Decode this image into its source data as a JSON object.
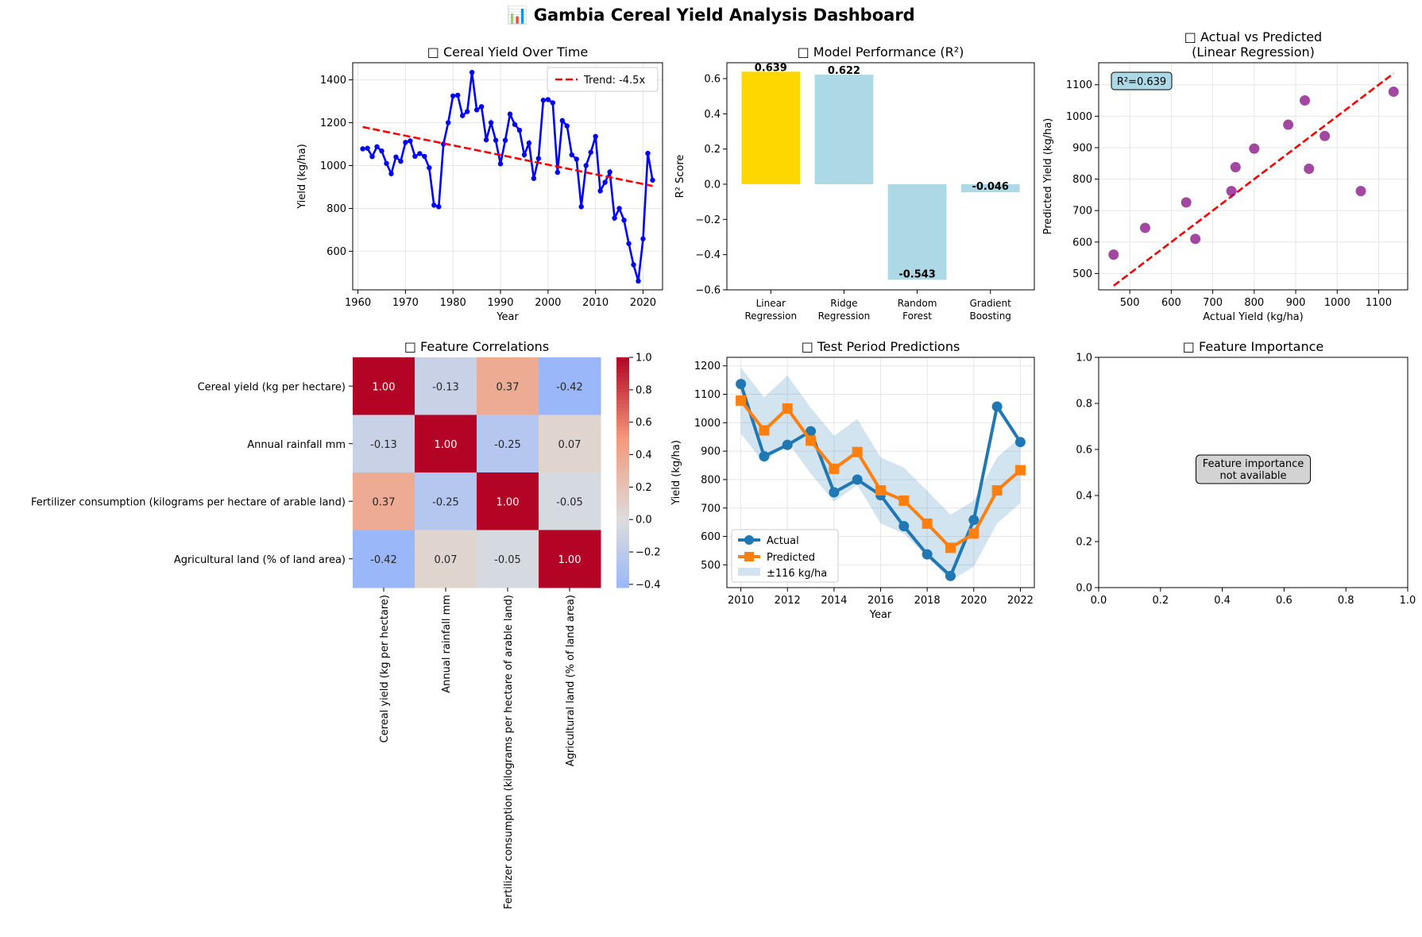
{
  "suptitle": "📊 Gambia Cereal Yield Analysis Dashboard",
  "missing_glyph": "□",
  "colors": {
    "line_blue": "#0000ff",
    "trend_red": "#ff0000",
    "gold": "#ffd700",
    "light_blue": "#add8e6",
    "purple": "#800080",
    "tab_blue": "#1f77b4",
    "tab_orange": "#ff7f0e",
    "band": "#1f77b4",
    "grid": "#e6e6e6"
  },
  "chart_data": [
    {
      "id": "yield_over_time",
      "type": "line",
      "title": "Cereal Yield Over Time",
      "xlabel": "Year",
      "ylabel": "Yield (kg/ha)",
      "xlim": [
        1958.9,
        2024.1
      ],
      "ylim": [
        420,
        1480
      ],
      "xticks": [
        1960,
        1970,
        1980,
        1990,
        2000,
        2010,
        2020
      ],
      "yticks": [
        600,
        800,
        1000,
        1200,
        1400
      ],
      "grid": true,
      "legend": {
        "position": "top-right",
        "entries": [
          "Trend: -4.5x"
        ]
      },
      "series": [
        {
          "x": [
            1961,
            1962,
            1963,
            1964,
            1965,
            1966,
            1967,
            1968,
            1969,
            1970,
            1971,
            1972,
            1973,
            1974,
            1975,
            1976,
            1977,
            1978,
            1979,
            1980,
            1981,
            1982,
            1983,
            1984,
            1985,
            1986,
            1987,
            1988,
            1989,
            1990,
            1991,
            1992,
            1993,
            1994,
            1995,
            1996,
            1997,
            1998,
            1999,
            2000,
            2001,
            2002,
            2003,
            2004,
            2005,
            2006,
            2007,
            2008,
            2009,
            2010,
            2011,
            2012,
            2013,
            2014,
            2015,
            2016,
            2017,
            2018,
            2019,
            2020,
            2021,
            2022
          ],
          "y": [
            1078,
            1081,
            1042,
            1088,
            1068,
            1010,
            962,
            1040,
            1020,
            1108,
            1115,
            1043,
            1056,
            1043,
            990,
            815,
            808,
            1100,
            1200,
            1325,
            1328,
            1233,
            1252,
            1435,
            1260,
            1275,
            1120,
            1200,
            1118,
            1008,
            1118,
            1240,
            1192,
            1165,
            1050,
            1105,
            940,
            1033,
            1305,
            1308,
            1293,
            968,
            1210,
            1185,
            1050,
            1030,
            808,
            1000,
            1062,
            1136,
            882,
            922,
            970,
            755,
            800,
            745,
            636,
            537,
            461,
            658,
            1057,
            932
          ]
        },
        {
          "name": "Trend: -4.5x",
          "x": [
            1961,
            2022
          ],
          "y": [
            1180,
            905
          ]
        }
      ]
    },
    {
      "id": "model_performance",
      "type": "bar",
      "title": "Model Performance (R²)",
      "ylabel": "R² Score",
      "ylim": [
        -0.6,
        0.69
      ],
      "yticks": [
        -0.6,
        -0.4,
        -0.2,
        0.0,
        0.2,
        0.4,
        0.6
      ],
      "categories": [
        "Linear\nRegression",
        "Ridge\nRegression",
        "Random\nForest",
        "Gradient\nBoosting"
      ],
      "values": [
        0.639,
        0.622,
        -0.543,
        -0.046
      ],
      "value_labels": [
        "0.639",
        "0.622",
        "-0.543",
        "-0.046"
      ],
      "highlight_index": 0
    },
    {
      "id": "actual_vs_predicted",
      "type": "scatter",
      "title": "Actual vs Predicted\n(Linear Regression)",
      "xlabel": "Actual Yield (kg/ha)",
      "ylabel": "Predicted Yield (kg/ha)",
      "xlim": [
        425,
        1170
      ],
      "ylim": [
        448,
        1170
      ],
      "xticks": [
        500,
        600,
        700,
        800,
        900,
        1000,
        1100
      ],
      "yticks": [
        500,
        600,
        700,
        800,
        900,
        1000,
        1100
      ],
      "annotation": "R²=0.639",
      "grid": true,
      "points": [
        [
          461,
          560
        ],
        [
          537,
          645
        ],
        [
          636,
          726
        ],
        [
          658,
          610
        ],
        [
          745,
          762
        ],
        [
          755,
          838
        ],
        [
          800,
          897
        ],
        [
          882,
          973
        ],
        [
          922,
          1050
        ],
        [
          932,
          833
        ],
        [
          970,
          937
        ],
        [
          1057,
          762
        ],
        [
          1136,
          1078
        ]
      ],
      "reference_line": [
        [
          461,
          461
        ],
        [
          1136,
          1136
        ]
      ]
    },
    {
      "id": "feature_correlations",
      "type": "heatmap",
      "title": "Feature Correlations",
      "labels": [
        "Cereal yield (kg per hectare)",
        "Annual rainfall mm",
        "Fertilizer consumption (kilograms per hectare of arable land)",
        "Agricultural land (% of land area)"
      ],
      "matrix": [
        [
          1.0,
          -0.13,
          0.37,
          -0.42
        ],
        [
          -0.13,
          1.0,
          -0.25,
          0.07
        ],
        [
          0.37,
          -0.25,
          1.0,
          -0.05
        ],
        [
          -0.42,
          0.07,
          -0.05,
          1.0
        ]
      ],
      "colorbar": {
        "range": [
          -0.42,
          1.0
        ],
        "ticks": [
          -0.4,
          -0.2,
          0.0,
          0.2,
          0.4,
          0.6,
          0.8,
          1.0
        ]
      }
    },
    {
      "id": "test_predictions",
      "type": "line",
      "title": "Test Period Predictions",
      "xlabel": "Year",
      "ylabel": "Yield (kg/ha)",
      "xlim": [
        2009.4,
        2022.6
      ],
      "ylim": [
        420,
        1230
      ],
      "xticks": [
        2010,
        2012,
        2014,
        2016,
        2018,
        2020,
        2022
      ],
      "yticks": [
        500,
        600,
        700,
        800,
        900,
        1000,
        1100,
        1200
      ],
      "grid": true,
      "legend": {
        "position": "bottom-left"
      },
      "x": [
        2010,
        2011,
        2012,
        2013,
        2014,
        2015,
        2016,
        2017,
        2018,
        2019,
        2020,
        2021,
        2022
      ],
      "series": [
        {
          "name": "Actual",
          "values": [
            1136,
            882,
            922,
            970,
            755,
            800,
            745,
            636,
            537,
            461,
            658,
            1057,
            932
          ]
        },
        {
          "name": "Predicted",
          "values": [
            1078,
            973,
            1050,
            937,
            838,
            897,
            762,
            726,
            645,
            560,
            610,
            762,
            833
          ]
        }
      ],
      "band": {
        "name": "±116 kg/ha",
        "width": 116
      }
    },
    {
      "id": "feature_importance",
      "type": "other",
      "title": "Feature Importance",
      "xlim": [
        0,
        1
      ],
      "ylim": [
        0,
        1
      ],
      "xticks": [
        "0.0",
        "0.2",
        "0.4",
        "0.6",
        "0.8",
        "1.0"
      ],
      "yticks": [
        "0.0",
        "0.2",
        "0.4",
        "0.6",
        "0.8",
        "1.0"
      ],
      "message": "Feature importance\nnot available"
    }
  ]
}
